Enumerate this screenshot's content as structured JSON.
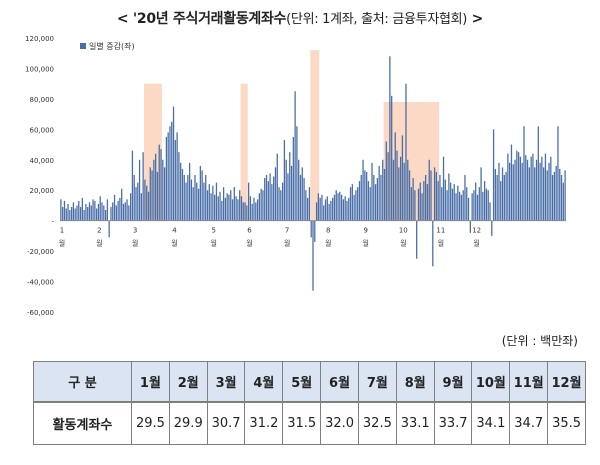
{
  "title": {
    "main": "< '20년 주식거래활동계좌수",
    "sub": "(단위: 1계좌, 출처: 금융투자협회)",
    "close": " >"
  },
  "colors": {
    "bar": "#4a6fa8",
    "highlight": "#fbd9c4",
    "grid": "#d9d9d9",
    "header_bg": "#dbe4f2"
  },
  "chart_data": {
    "type": "bar",
    "legend": {
      "label": "일별 증감(좌)",
      "position": "top-left"
    },
    "ylim": [
      -60000,
      120000
    ],
    "y_ticks": [
      120000,
      100000,
      80000,
      60000,
      40000,
      20000,
      0,
      -20000,
      -40000,
      -60000
    ],
    "y_tick_labels": [
      "120,000",
      "100,000",
      "80,000",
      "60,000",
      "40,000",
      "20,000",
      "-",
      "-20,000",
      "-40,000",
      "-60,000"
    ],
    "month_labels": [
      "1",
      "2",
      "3",
      "4",
      "5",
      "6",
      "7",
      "8",
      "9",
      "10",
      "11",
      "12"
    ],
    "month_suffix": "월",
    "highlight_regions": [
      {
        "from_day": 47,
        "to_day": 57,
        "top": 90000
      },
      {
        "from_day": 101,
        "to_day": 105,
        "top": 90000
      },
      {
        "from_day": 140,
        "to_day": 145,
        "top": 112000
      },
      {
        "from_day": 181,
        "to_day": 212,
        "top": 78000
      }
    ],
    "values": [
      14000,
      9000,
      13000,
      8000,
      11000,
      7000,
      9000,
      12000,
      8000,
      10000,
      13000,
      9000,
      15000,
      7000,
      11000,
      9000,
      12000,
      10000,
      14000,
      13000,
      8000,
      11000,
      16000,
      12000,
      10000,
      7000,
      14000,
      -11000,
      9000,
      12000,
      17000,
      10000,
      13000,
      15000,
      21000,
      11000,
      12000,
      14000,
      10000,
      18000,
      46000,
      30000,
      22000,
      25000,
      40000,
      18000,
      45000,
      27000,
      23000,
      19000,
      35000,
      33000,
      40000,
      44000,
      32000,
      50000,
      47000,
      40000,
      35000,
      55000,
      58000,
      62000,
      65000,
      75000,
      53000,
      58000,
      45000,
      38000,
      34000,
      30000,
      25000,
      30000,
      38000,
      27000,
      22000,
      30000,
      25000,
      21000,
      36000,
      33000,
      25000,
      30000,
      20000,
      24000,
      18000,
      23000,
      17000,
      25000,
      16000,
      19000,
      13000,
      22000,
      15000,
      18000,
      17000,
      20000,
      14000,
      22000,
      16000,
      14000,
      20000,
      16000,
      12000,
      12000,
      10000,
      25000,
      16000,
      11000,
      15000,
      12000,
      14000,
      18000,
      21000,
      20000,
      28000,
      30000,
      26000,
      31000,
      24000,
      29000,
      35000,
      44000,
      22000,
      20000,
      25000,
      53000,
      40000,
      31000,
      45000,
      36000,
      55000,
      85000,
      62000,
      40000,
      30000,
      35000,
      28000,
      20000,
      15000,
      22000,
      -11000,
      -46000,
      -14000,
      12000,
      18000,
      15000,
      17000,
      10000,
      14000,
      16000,
      11000,
      13000,
      15000,
      17000,
      20000,
      18000,
      19000,
      17000,
      14000,
      16000,
      13000,
      15000,
      22000,
      24000,
      17000,
      20000,
      22000,
      26000,
      30000,
      40000,
      33000,
      32000,
      26000,
      22000,
      38000,
      30000,
      24000,
      28000,
      36000,
      30000,
      40000,
      34000,
      52000,
      45000,
      108000,
      82000,
      40000,
      58000,
      46000,
      35000,
      42000,
      56000,
      38000,
      90000,
      40000,
      33000,
      22000,
      28000,
      20000,
      -25000,
      21000,
      25000,
      18000,
      26000,
      30000,
      24000,
      40000,
      33000,
      -30000,
      35000,
      32000,
      26000,
      30000,
      22000,
      42000,
      27000,
      20000,
      31000,
      25000,
      21000,
      24000,
      18000,
      23000,
      19000,
      17000,
      20000,
      30000,
      22000,
      15000,
      -8000,
      18000,
      20000,
      25000,
      17000,
      22000,
      35000,
      19000,
      26000,
      21000,
      20000,
      12000,
      -10000,
      60000,
      34000,
      30000,
      38000,
      26000,
      35000,
      30000,
      32000,
      44000,
      38000,
      50000,
      37000,
      40000,
      46000,
      45000,
      42000,
      38000,
      62000,
      43000,
      40000,
      35000,
      42000,
      44000,
      35000,
      40000,
      62000,
      38000,
      42000,
      35000,
      44000,
      33000,
      38000,
      42000,
      30000,
      32000,
      36000,
      62000,
      34000,
      30000,
      25000,
      33000
    ]
  },
  "unit": "(단위 : 백만좌)",
  "table": {
    "header_label": "구 분",
    "months": [
      "1월",
      "2월",
      "3월",
      "4월",
      "5월",
      "6월",
      "7월",
      "8월",
      "9월",
      "10월",
      "11월",
      "12월"
    ],
    "row_label": "활동계좌수",
    "values": [
      "29.5",
      "29.9",
      "30.7",
      "31.2",
      "31.5",
      "32.0",
      "32.5",
      "33.1",
      "33.7",
      "34.1",
      "34.7",
      "35.5"
    ]
  }
}
